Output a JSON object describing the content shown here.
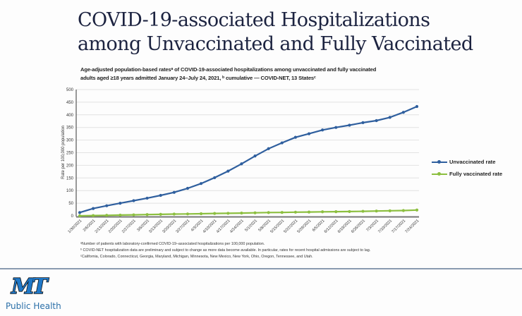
{
  "slide": {
    "title_lines": [
      "COVID-19-associated Hospitalizations",
      "among Unvaccinated and Fully Vaccinated"
    ],
    "footnotes": [
      "ᵃNumber of patients with laboratory-confirmed COVID-19–associated hospitalizations per 100,000 population.",
      "ᵇ COVID-NET hospitalization data are preliminary and subject to change as more data become available. In particular, rates for recent hospital admissions are subject to lag.",
      "ᶜCalifornia, Colorado, Connecticut, Georgia, Maryland, Michigan, Minnesota, New Mexico, New York, Ohio, Oregon, Tennessee, and Utah."
    ],
    "logo": {
      "icon": "mt-logo-icon",
      "text": "Public Health",
      "letters": "MT",
      "color": "#1f78c8"
    }
  },
  "chart_data": {
    "type": "line",
    "title_lines": [
      "Age-adjusted population-based ratesᵃ of COVID-19-associated hospitalizations among unvaccinated and fully vaccinated",
      "adults aged ≥18 years admitted January 24–July 24, 2021, ᵇ cumulative — COVID-NET, 13 Statesᶜ"
    ],
    "xlabel": "",
    "ylabel": "Rate per 100,000 population",
    "ylim": [
      0,
      500
    ],
    "yticks": [
      0,
      50,
      100,
      150,
      200,
      250,
      300,
      350,
      400,
      450,
      500
    ],
    "grid": true,
    "legend_position": "right",
    "categories": [
      "1/30/2021",
      "2/6/2021",
      "2/13/2021",
      "2/20/2021",
      "2/27/2021",
      "3/6/2021",
      "3/13/2021",
      "3/20/2021",
      "3/27/2021",
      "4/3/2021",
      "4/10/2021",
      "4/17/2021",
      "4/24/2021",
      "5/1/2021",
      "5/8/2021",
      "5/15/2021",
      "5/22/2021",
      "5/29/2021",
      "6/5/2021",
      "6/12/2021",
      "6/19/2021",
      "6/26/2021",
      "7/3/2021",
      "7/10/2021",
      "7/17/2021",
      "7/24/2021"
    ],
    "series": [
      {
        "name": "Unvaccinated rate",
        "color": "#2f5f9e",
        "values": [
          13,
          29,
          40,
          50,
          60,
          70,
          81,
          93,
          109,
          128,
          151,
          177,
          206,
          237,
          266,
          289,
          311,
          325,
          340,
          350,
          359,
          369,
          377,
          390,
          410,
          433
        ]
      },
      {
        "name": "Fully vaccinated rate",
        "color": "#8cbf3f",
        "values": [
          0,
          1,
          2,
          3,
          4,
          5,
          6,
          7,
          7.5,
          8.5,
          9.5,
          10,
          11,
          12,
          13,
          13.5,
          14.5,
          15,
          16,
          16.5,
          17,
          18,
          19,
          20,
          21,
          23
        ]
      }
    ]
  }
}
